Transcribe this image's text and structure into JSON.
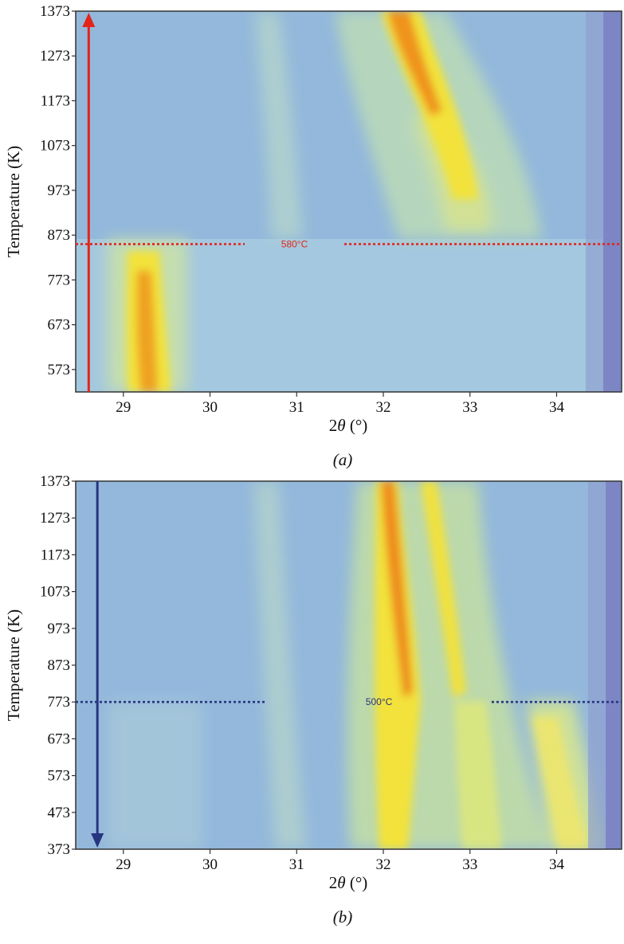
{
  "chart_data": [
    {
      "type": "heatmap",
      "panel_label": "(a)",
      "xlabel_prefix": "2",
      "xlabel_symbol": "θ",
      "xlabel_suffix": " (°)",
      "ylabel": "Temperature (K)",
      "xlim": [
        28.45,
        34.75
      ],
      "ylim": [
        523,
        1373
      ],
      "x_ticks": [
        29,
        30,
        31,
        32,
        33,
        34
      ],
      "y_ticks": [
        573,
        673,
        773,
        873,
        973,
        1073,
        1173,
        1273,
        1373
      ],
      "arrow": {
        "direction": "up",
        "x": 28.6,
        "color": "#e3241b"
      },
      "threshold": {
        "label": "580°C",
        "y": 853,
        "color": "#e3241b",
        "gap_x": [
          30.4,
          31.55
        ]
      },
      "colors": {
        "background": "#93b8dc",
        "low": "#9ec2e0",
        "mid": "#b8d8b0",
        "high": "#f2e23a",
        "peak": "#ee8b1c",
        "edge": "#7d86c4"
      },
      "peaks": [
        {
          "x": 29.2,
          "y_range": [
            523,
            853
          ],
          "intensity": "high"
        },
        {
          "x": 32.3,
          "y_range": [
            873,
            1373
          ],
          "intensity": "peak"
        },
        {
          "x": 32.9,
          "y_range": [
            853,
            1150
          ],
          "intensity": "mid"
        },
        {
          "x": 30.85,
          "y_range": [
            1000,
            1373
          ],
          "intensity": "low"
        }
      ]
    },
    {
      "type": "heatmap",
      "panel_label": "(b)",
      "xlabel_prefix": "2",
      "xlabel_symbol": "θ",
      "xlabel_suffix": " (°)",
      "ylabel": "Temperature (K)",
      "xlim": [
        28.45,
        34.75
      ],
      "ylim": [
        373,
        1373
      ],
      "x_ticks": [
        29,
        30,
        31,
        32,
        33,
        34
      ],
      "y_ticks": [
        373,
        473,
        573,
        673,
        773,
        873,
        973,
        1073,
        1173,
        1273,
        1373
      ],
      "arrow": {
        "direction": "down",
        "x": 28.7,
        "color": "#27357e"
      },
      "threshold": {
        "label": "500°C",
        "y": 773,
        "color": "#27357e",
        "gap_x": [
          30.65,
          33.25
        ]
      },
      "colors": {
        "background": "#93b8dc",
        "low": "#9ec2e0",
        "mid": "#b8d8b0",
        "high": "#f2e23a",
        "peak": "#ee8b1c",
        "edge": "#7d86c4"
      },
      "peaks": [
        {
          "x": 32.1,
          "y_range": [
            373,
            1373
          ],
          "intensity": "peak"
        },
        {
          "x": 32.7,
          "y_range": [
            773,
            1373
          ],
          "intensity": "high"
        },
        {
          "x": 33.9,
          "y_range": [
            373,
            700
          ],
          "intensity": "mid"
        },
        {
          "x": 31.0,
          "y_range": [
            373,
            1373
          ],
          "intensity": "low"
        }
      ]
    }
  ]
}
